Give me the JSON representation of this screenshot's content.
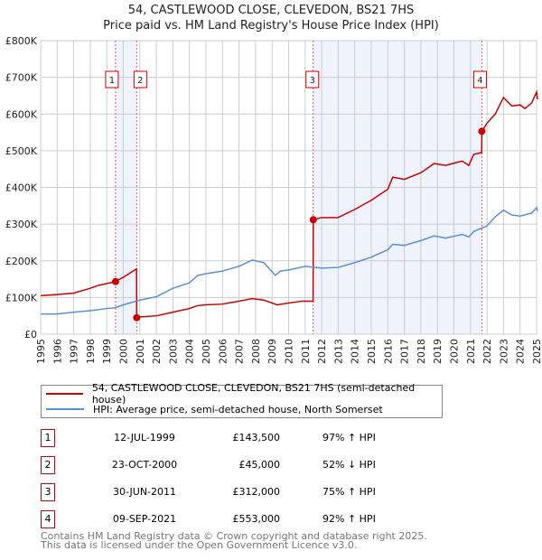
{
  "title": "54, CASTLEWOOD CLOSE, CLEVEDON, BS21 7HS",
  "subtitle": "Price paid vs. HM Land Registry's House Price Index (HPI)",
  "chart_data": {
    "type": "line",
    "title": "54, CASTLEWOOD CLOSE, CLEVEDON, BS21 7HS — Price paid vs. HM Land Registry's House Price Index (HPI)",
    "xlim": [
      1995,
      2025
    ],
    "ylim": [
      0,
      800000
    ],
    "x_ticks": [
      "1995",
      "1996",
      "1997",
      "1998",
      "1999",
      "2000",
      "2001",
      "2002",
      "2003",
      "2004",
      "2005",
      "2006",
      "2007",
      "2008",
      "2009",
      "2010",
      "2011",
      "2012",
      "2013",
      "2014",
      "2015",
      "2016",
      "2017",
      "2018",
      "2019",
      "2020",
      "2021",
      "2022",
      "2023",
      "2024",
      "2025"
    ],
    "y_ticks": [
      {
        "v": 0,
        "label": "£0"
      },
      {
        "v": 100000,
        "label": "£100K"
      },
      {
        "v": 200000,
        "label": "£200K"
      },
      {
        "v": 300000,
        "label": "£300K"
      },
      {
        "v": 400000,
        "label": "£400K"
      },
      {
        "v": 500000,
        "label": "£500K"
      },
      {
        "v": 600000,
        "label": "£600K"
      },
      {
        "v": 700000,
        "label": "£700K"
      },
      {
        "v": 800000,
        "label": "£800K"
      }
    ],
    "series": [
      {
        "name": "54, CASTLEWOOD CLOSE, CLEVEDON, BS21 7HS (semi-detached house)",
        "color": "#cc0000",
        "points": [
          [
            1995,
            105000
          ],
          [
            1996,
            108000
          ],
          [
            1997,
            112000
          ],
          [
            1998,
            125000
          ],
          [
            1998.5,
            133000
          ],
          [
            1999.53,
            143500
          ],
          [
            2000,
            155000
          ],
          [
            2000.8,
            178000
          ],
          [
            2000.81,
            45000
          ],
          [
            2001,
            47000
          ],
          [
            2002,
            50000
          ],
          [
            2003,
            60000
          ],
          [
            2004,
            70000
          ],
          [
            2004.5,
            78000
          ],
          [
            2005,
            80000
          ],
          [
            2006,
            82000
          ],
          [
            2007,
            90000
          ],
          [
            2007.8,
            97000
          ],
          [
            2008.5,
            93000
          ],
          [
            2009.3,
            80000
          ],
          [
            2010,
            85000
          ],
          [
            2010.8,
            90000
          ],
          [
            2011.48,
            90000
          ],
          [
            2011.49,
            312000
          ],
          [
            2012,
            318000
          ],
          [
            2013,
            318000
          ],
          [
            2014,
            340000
          ],
          [
            2015,
            365000
          ],
          [
            2016,
            395000
          ],
          [
            2016.3,
            428000
          ],
          [
            2017,
            422000
          ],
          [
            2018,
            440000
          ],
          [
            2018.8,
            465000
          ],
          [
            2019.5,
            460000
          ],
          [
            2020.5,
            472000
          ],
          [
            2020.9,
            460000
          ],
          [
            2021.2,
            490000
          ],
          [
            2021.68,
            495000
          ],
          [
            2021.69,
            553000
          ],
          [
            2022,
            575000
          ],
          [
            2022.5,
            600000
          ],
          [
            2023,
            645000
          ],
          [
            2023.5,
            622000
          ],
          [
            2024,
            625000
          ],
          [
            2024.3,
            615000
          ],
          [
            2024.7,
            630000
          ],
          [
            2025,
            660000
          ],
          [
            2025.05,
            640000
          ]
        ]
      },
      {
        "name": "HPI: Average price, semi-detached house, North Somerset",
        "color": "#5b8fd4",
        "points": [
          [
            1995,
            55000
          ],
          [
            1996,
            55000
          ],
          [
            1997,
            60000
          ],
          [
            1998,
            64000
          ],
          [
            1999,
            70000
          ],
          [
            1999.5,
            72000
          ],
          [
            2000,
            80000
          ],
          [
            2001,
            93000
          ],
          [
            2002,
            102000
          ],
          [
            2003,
            125000
          ],
          [
            2004,
            140000
          ],
          [
            2004.5,
            160000
          ],
          [
            2005,
            165000
          ],
          [
            2006,
            172000
          ],
          [
            2007,
            185000
          ],
          [
            2007.8,
            202000
          ],
          [
            2008.5,
            195000
          ],
          [
            2009.2,
            160000
          ],
          [
            2009.5,
            172000
          ],
          [
            2010,
            175000
          ],
          [
            2011,
            185000
          ],
          [
            2012,
            180000
          ],
          [
            2013,
            182000
          ],
          [
            2014,
            195000
          ],
          [
            2015,
            210000
          ],
          [
            2016,
            230000
          ],
          [
            2016.3,
            245000
          ],
          [
            2017,
            242000
          ],
          [
            2018,
            255000
          ],
          [
            2018.8,
            268000
          ],
          [
            2019.5,
            262000
          ],
          [
            2020.5,
            272000
          ],
          [
            2020.9,
            265000
          ],
          [
            2021.2,
            280000
          ],
          [
            2022,
            295000
          ],
          [
            2022.5,
            320000
          ],
          [
            2023,
            338000
          ],
          [
            2023.5,
            325000
          ],
          [
            2024,
            322000
          ],
          [
            2024.7,
            330000
          ],
          [
            2025,
            345000
          ],
          [
            2025.05,
            335000
          ]
        ]
      }
    ],
    "sales": [
      {
        "n": "1",
        "x": 1999.53,
        "y": 143500
      },
      {
        "n": "2",
        "x": 2000.81,
        "y": 45000
      },
      {
        "n": "3",
        "x": 2011.49,
        "y": 312000
      },
      {
        "n": "4",
        "x": 2021.69,
        "y": 553000
      }
    ],
    "shaded_ranges": [
      [
        1999.53,
        2000.81
      ],
      [
        2011.49,
        2021.69
      ]
    ]
  },
  "legend": {
    "red": "54, CASTLEWOOD CLOSE, CLEVEDON, BS21 7HS (semi-detached house)",
    "blue": "HPI: Average price, semi-detached house, North Somerset"
  },
  "transactions": [
    {
      "n": "1",
      "date": "12-JUL-1999",
      "price": "£143,500",
      "hpi": "97% ↑ HPI"
    },
    {
      "n": "2",
      "date": "23-OCT-2000",
      "price": "£45,000",
      "hpi": "52% ↓ HPI"
    },
    {
      "n": "3",
      "date": "30-JUN-2011",
      "price": "£312,000",
      "hpi": "75% ↑ HPI"
    },
    {
      "n": "4",
      "date": "09-SEP-2021",
      "price": "£553,000",
      "hpi": "92% ↑ HPI"
    }
  ],
  "footer": {
    "line1": "Contains HM Land Registry data © Crown copyright and database right 2025.",
    "line2": "This data is licensed under the Open Government Licence v3.0."
  }
}
